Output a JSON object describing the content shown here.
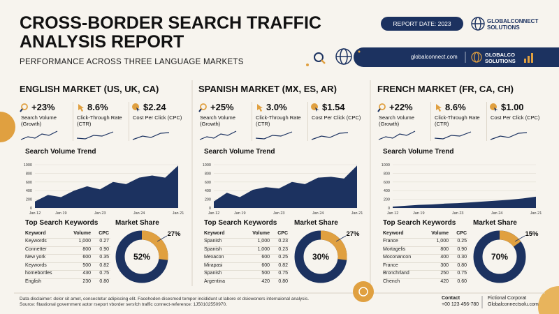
{
  "header": {
    "title": "CROSS-BORDER SEARCH TRAFFIC ANALYSIS REPORT",
    "subtitle": "PERFORMANCE ACROSS THREE LANGUAGE MARKETS",
    "report_date": "REPORT DATE: 2023",
    "logo": "GLOBALCONNECT SOLUTIONS",
    "url": "globalconnect.com",
    "logo_short": "GLOBALCO SOLUTIONS"
  },
  "markets": [
    {
      "title": "ENGLISH MARKET (US, UK, CA)",
      "kpis": [
        {
          "value": "+23%",
          "label": "Search Volume (Growth)"
        },
        {
          "value": "8.6%",
          "label": "Click-Through Rate (CTR)"
        },
        {
          "value": "$2.24",
          "label": "Cost Per Click (CPC)"
        }
      ],
      "trend": {
        "type": "area",
        "title": "Search Volume Trend",
        "categories": [
          "Jan 12",
          null,
          "Jan 19",
          null,
          null,
          "Jan 23",
          null,
          null,
          "Jan 24",
          null,
          null,
          "Jan 21"
        ],
        "values": [
          150,
          300,
          250,
          400,
          500,
          430,
          600,
          550,
          700,
          750,
          700,
          980
        ],
        "ylim": [
          0,
          1000
        ],
        "yticks": [
          0,
          200,
          400,
          600,
          800,
          1000
        ],
        "color": "#1c3260"
      },
      "keywords": {
        "title": "Top Search Keywords",
        "columns": [
          "Keyword",
          "Volume",
          "CPC"
        ],
        "rows": [
          [
            "Keywords",
            "1,000",
            "0.27"
          ],
          [
            "Connetter",
            "800",
            "0.90"
          ],
          [
            "New york",
            "600",
            "0.35"
          ],
          [
            "Keywords",
            "500",
            "0.82"
          ],
          [
            "homebortles",
            "430",
            "0.75"
          ],
          [
            "English",
            "230",
            "0.80"
          ]
        ]
      },
      "share": {
        "title": "Market Share",
        "values": [
          52,
          27
        ],
        "value_labels": [
          "52%",
          "27%"
        ]
      }
    },
    {
      "title": "SPANISH MARKET (MX, ES, AR)",
      "kpis": [
        {
          "value": "+25%",
          "label": "Search Volume (Growth)"
        },
        {
          "value": "3.0%",
          "label": "Click-Through Rate (CTR)"
        },
        {
          "value": "$1.54",
          "label": "Cost Per Click (CPC)"
        }
      ],
      "trend": {
        "type": "area",
        "title": "Search Volume Trend",
        "categories": [
          "Jan 12",
          null,
          "Jan 19",
          null,
          null,
          "Jan 23",
          null,
          null,
          "Jan 24",
          null,
          null,
          "Jan 21"
        ],
        "values": [
          150,
          350,
          250,
          420,
          480,
          450,
          600,
          550,
          700,
          720,
          680,
          980
        ],
        "ylim": [
          0,
          1000
        ],
        "yticks": [
          0,
          200,
          400,
          600,
          800,
          1000
        ],
        "color": "#1c3260"
      },
      "keywords": {
        "title": "Top Search Keywords",
        "columns": [
          "Keyword",
          "Volume",
          "CPC"
        ],
        "rows": [
          [
            "Spanish",
            "1,000",
            "0.23"
          ],
          [
            "Spanish",
            "1,000",
            "0.23"
          ],
          [
            "Mexacon",
            "600",
            "0.25"
          ],
          [
            "Mirapasi",
            "600",
            "0.82"
          ],
          [
            "Spanish",
            "500",
            "0.75"
          ],
          [
            "Argentina",
            "420",
            "0.80"
          ]
        ]
      },
      "share": {
        "title": "Market Share",
        "values": [
          30,
          27
        ],
        "value_labels": [
          "30%",
          "27%"
        ]
      }
    },
    {
      "title": "FRENCH MARKET (FR, CA, CH)",
      "kpis": [
        {
          "value": "+22%",
          "label": "Search Volume (Growth)"
        },
        {
          "value": "8.6%",
          "label": "Click-Through Rate (CTR)"
        },
        {
          "value": "$1.00",
          "label": "Cost Per Click (CPC)"
        }
      ],
      "trend": {
        "type": "area",
        "title": "Search Volume Trend",
        "categories": [
          "Jan 12",
          null,
          "Jan 19",
          null,
          null,
          "Jan 23",
          null,
          null,
          "Jan 24",
          null,
          null,
          "Jan 21"
        ],
        "values": [
          30,
          50,
          70,
          80,
          100,
          110,
          130,
          150,
          170,
          190,
          220,
          260
        ],
        "ylim": [
          0,
          1000
        ],
        "yticks": [
          0,
          200,
          400,
          600,
          800,
          1000
        ],
        "color": "#1c3260"
      },
      "keywords": {
        "title": "Top Search Keywords",
        "columns": [
          "Keyword",
          "Volume",
          "CPC"
        ],
        "rows": [
          [
            "France",
            "1,000",
            "0.25"
          ],
          [
            "Mortagelis",
            "800",
            "0.90"
          ],
          [
            "Moconancon",
            "400",
            "0.30"
          ],
          [
            "France",
            "300",
            "0.80"
          ],
          [
            "Bronchrland",
            "250",
            "0.75"
          ],
          [
            "Chench",
            "420",
            "0.60"
          ]
        ]
      },
      "share": {
        "title": "Market Share",
        "values": [
          70,
          15
        ],
        "value_labels": [
          "70%",
          "15%"
        ]
      }
    }
  ],
  "footer": {
    "disclaimer": "Data disclaimer: dolor sit amet, consectetur adipiscing elit. Facehoden disesmod tempor incididunt ut labore et dsiowoners internaional analysis.",
    "source": "Source: fitastional government aotor rseport ᴠborder sersfch traffic connect-reference: 1J50102550970.",
    "contact_title": "Contact",
    "contact_phone": "+00 123 456-780",
    "company": "Fictional Corporat",
    "website": "Globalconnectsolu.com"
  }
}
